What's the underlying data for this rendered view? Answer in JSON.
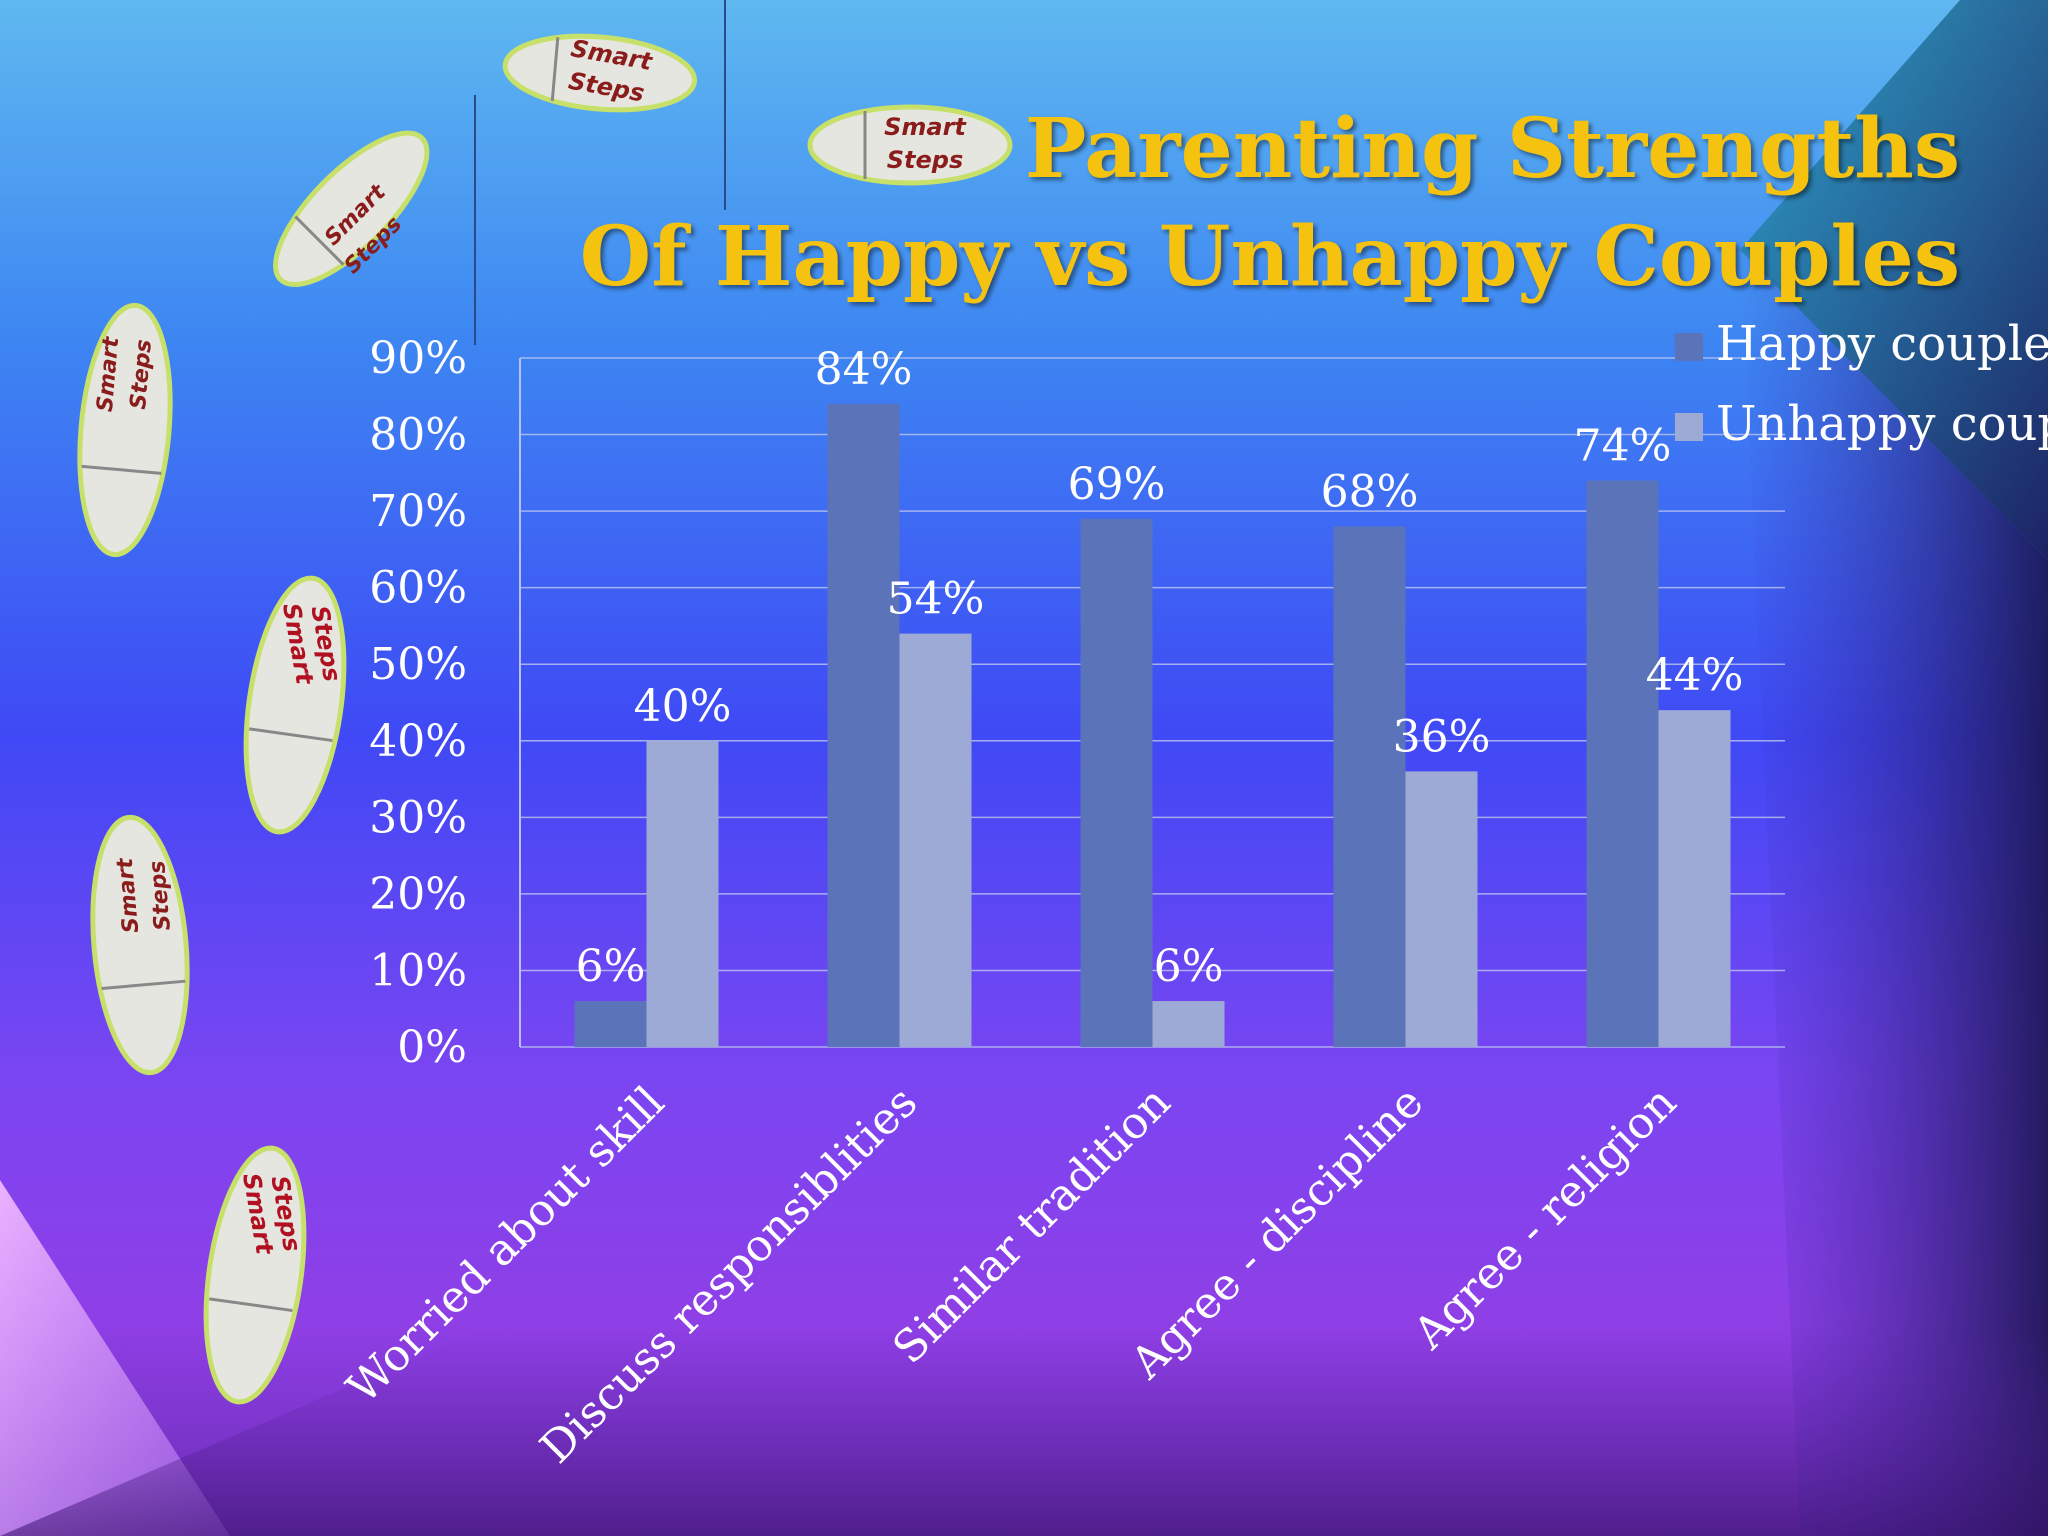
{
  "title": {
    "line1": "Parenting Strengths",
    "line2": "Of Happy vs Unhappy Couples"
  },
  "decoration": {
    "footprint_label": "Smart Steps",
    "footprint_line1": "Smart",
    "footprint_line2": "Steps"
  },
  "colors": {
    "title": "#f5c20f",
    "happy": "#5b73b8",
    "unhappy": "#9eaad6",
    "axis_text": "#ffffff",
    "gridline": "#b8c0f0"
  },
  "chart_data": {
    "type": "bar",
    "categories": [
      "Worried about skill",
      "Discuss responsiblities",
      "Similar tradition",
      "Agree - discipline",
      "Agree - religion"
    ],
    "series": [
      {
        "name": "Happy couple",
        "values": [
          6,
          84,
          69,
          68,
          74
        ],
        "labels": [
          "6%",
          "84%",
          "69%",
          "68%",
          "74%"
        ]
      },
      {
        "name": "Unhappy coup",
        "values": [
          40,
          54,
          6,
          36,
          44
        ],
        "labels": [
          "40%",
          "54%",
          "6%",
          "36%",
          "44%"
        ]
      }
    ],
    "ylim": [
      0,
      90
    ],
    "yticks": [
      "0%",
      "10%",
      "20%",
      "30%",
      "40%",
      "50%",
      "60%",
      "70%",
      "80%",
      "90%"
    ],
    "grid": true,
    "legend": "top-right"
  }
}
